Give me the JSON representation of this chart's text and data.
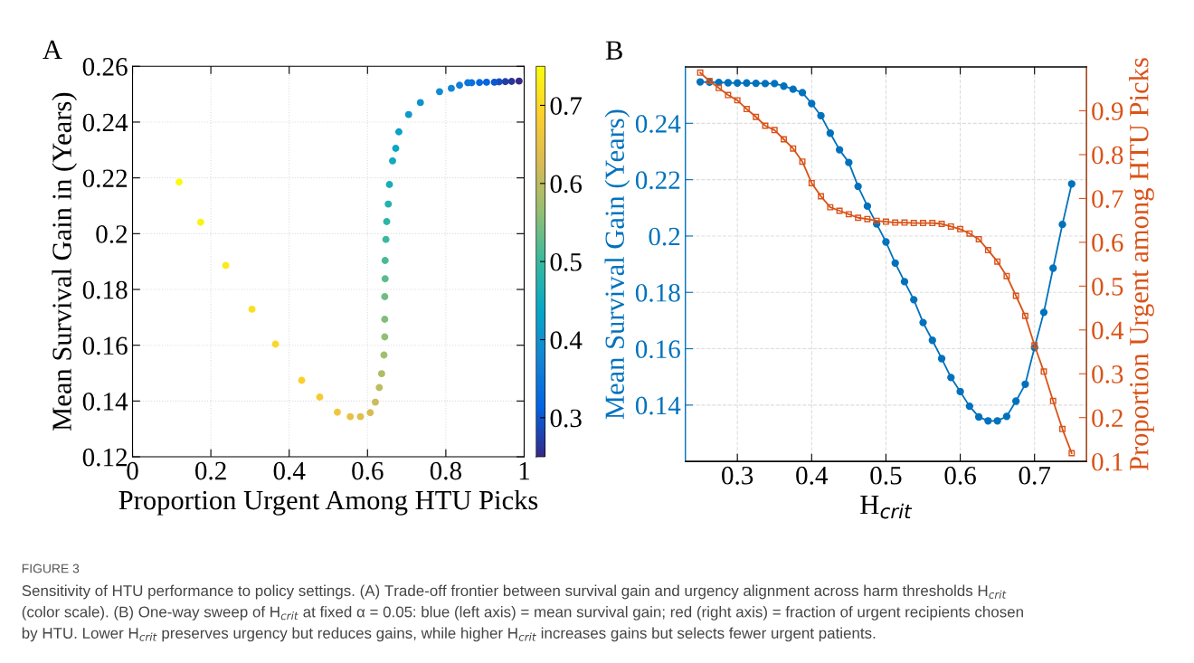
{
  "chart_data": [
    {
      "type": "scatter",
      "title": "A",
      "xlabel": "Proportion Urgent Among HTU Picks",
      "ylabel": "Mean Survival Gain in (Years)",
      "x": [
        0.987,
        0.968,
        0.952,
        0.936,
        0.924,
        0.904,
        0.886,
        0.866,
        0.856,
        0.835,
        0.814,
        0.784,
        0.735,
        0.705,
        0.68,
        0.672,
        0.664,
        0.656,
        0.653,
        0.649,
        0.647,
        0.645,
        0.645,
        0.644,
        0.644,
        0.644,
        0.642,
        0.636,
        0.63,
        0.62,
        0.607,
        0.582,
        0.556,
        0.523,
        0.478,
        0.432,
        0.365,
        0.305,
        0.238,
        0.174,
        0.119
      ],
      "values": [
        0.2547,
        0.2546,
        0.2545,
        0.2544,
        0.2543,
        0.2543,
        0.2542,
        0.2541,
        0.2541,
        0.2532,
        0.2521,
        0.2509,
        0.247,
        0.2427,
        0.2365,
        0.2306,
        0.2261,
        0.2176,
        0.2106,
        0.2043,
        0.1979,
        0.1904,
        0.1838,
        0.1774,
        0.1693,
        0.163,
        0.1565,
        0.1498,
        0.1448,
        0.1396,
        0.1358,
        0.1344,
        0.1344,
        0.136,
        0.1414,
        0.1474,
        0.1604,
        0.1729,
        0.1886,
        0.2041,
        0.2185
      ],
      "cvalues": [
        0.25,
        0.2625,
        0.275,
        0.2875,
        0.3,
        0.3125,
        0.325,
        0.3375,
        0.35,
        0.3625,
        0.375,
        0.3875,
        0.4,
        0.4125,
        0.425,
        0.4375,
        0.45,
        0.4625,
        0.475,
        0.4875,
        0.5,
        0.5125,
        0.525,
        0.5375,
        0.55,
        0.5625,
        0.575,
        0.5875,
        0.6,
        0.6125,
        0.625,
        0.6375,
        0.65,
        0.6625,
        0.675,
        0.6875,
        0.7,
        0.7125,
        0.725,
        0.7375,
        0.75
      ],
      "clim": [
        0.25,
        0.75
      ],
      "cticks": [
        0.3,
        0.4,
        0.5,
        0.6,
        0.7
      ],
      "xlim": [
        0,
        1
      ],
      "xticks": [
        0,
        0.2,
        0.4,
        0.6,
        0.8,
        1
      ],
      "ylim": [
        0.12,
        0.26
      ],
      "yticks": [
        0.12,
        0.14,
        0.16,
        0.18,
        0.2,
        0.22,
        0.24,
        0.26
      ],
      "grid": true,
      "marker": "circle"
    },
    {
      "type": "line",
      "title": "B",
      "xlabel": "H$_{crit}$",
      "ylabel": "Mean Survival Gain (Years)",
      "y2label": "Proportion Urgent among HTU Picks",
      "x": [
        0.25,
        0.2625,
        0.275,
        0.2875,
        0.3,
        0.3125,
        0.325,
        0.3375,
        0.35,
        0.3625,
        0.375,
        0.3875,
        0.4,
        0.4125,
        0.425,
        0.4375,
        0.45,
        0.4625,
        0.475,
        0.4875,
        0.5,
        0.5125,
        0.525,
        0.5375,
        0.55,
        0.5625,
        0.575,
        0.5875,
        0.6,
        0.6125,
        0.625,
        0.6375,
        0.65,
        0.6625,
        0.675,
        0.6875,
        0.7,
        0.7125,
        0.725,
        0.7375,
        0.75
      ],
      "series": [
        {
          "color": "#0072bd",
          "marker": "circle",
          "values": [
            0.2547,
            0.2546,
            0.2545,
            0.2544,
            0.2543,
            0.2543,
            0.2542,
            0.2541,
            0.2541,
            0.2532,
            0.2521,
            0.2509,
            0.247,
            0.2427,
            0.2365,
            0.2306,
            0.2261,
            0.2176,
            0.2106,
            0.2043,
            0.1979,
            0.1904,
            0.1838,
            0.1774,
            0.1693,
            0.163,
            0.1565,
            0.1498,
            0.1448,
            0.1396,
            0.1358,
            0.1344,
            0.1344,
            0.136,
            0.1414,
            0.1474,
            0.1604,
            0.1729,
            0.1886,
            0.2041,
            0.2185
          ]
        },
        {
          "color": "#d95319",
          "marker": "square",
          "axis": "y2",
          "values": [
            0.987,
            0.968,
            0.952,
            0.936,
            0.924,
            0.904,
            0.886,
            0.866,
            0.856,
            0.835,
            0.814,
            0.784,
            0.735,
            0.705,
            0.68,
            0.672,
            0.664,
            0.656,
            0.653,
            0.649,
            0.647,
            0.645,
            0.645,
            0.644,
            0.644,
            0.644,
            0.642,
            0.636,
            0.63,
            0.62,
            0.607,
            0.582,
            0.556,
            0.523,
            0.478,
            0.432,
            0.365,
            0.305,
            0.238,
            0.174,
            0.119
          ]
        }
      ],
      "xlim": [
        0.23,
        0.77
      ],
      "xticks": [
        0.3,
        0.4,
        0.5,
        0.6,
        0.7
      ],
      "ylim": [
        0.12,
        0.26
      ],
      "yticks": [
        0.14,
        0.16,
        0.18,
        0.2,
        0.22,
        0.24
      ],
      "y2lim": [
        0.1,
        1.0
      ],
      "y2ticks": [
        0.1,
        0.2,
        0.3,
        0.4,
        0.5,
        0.6,
        0.7,
        0.8,
        0.9
      ],
      "grid": true,
      "line_style": "solid",
      "annotations": [
        "FIGURE 3",
        "Sensitivity of HTU performance to policy settings. (A) Trade-off frontier between survival gain and urgency alignment across harm thresholds H$_{crit}$",
        "(color scale). (B) One-way sweep of H$_{crit}$ at fixed α = 0.05: blue (left axis) = mean survival gain; red (right axis) = fraction of urgent recipients chosen",
        "by HTU. Lower H$_{crit}$ preserves urgency but reduces gains, while higher H$_{crit}$ increases gains but selects fewer urgent patients."
      ]
    }
  ]
}
